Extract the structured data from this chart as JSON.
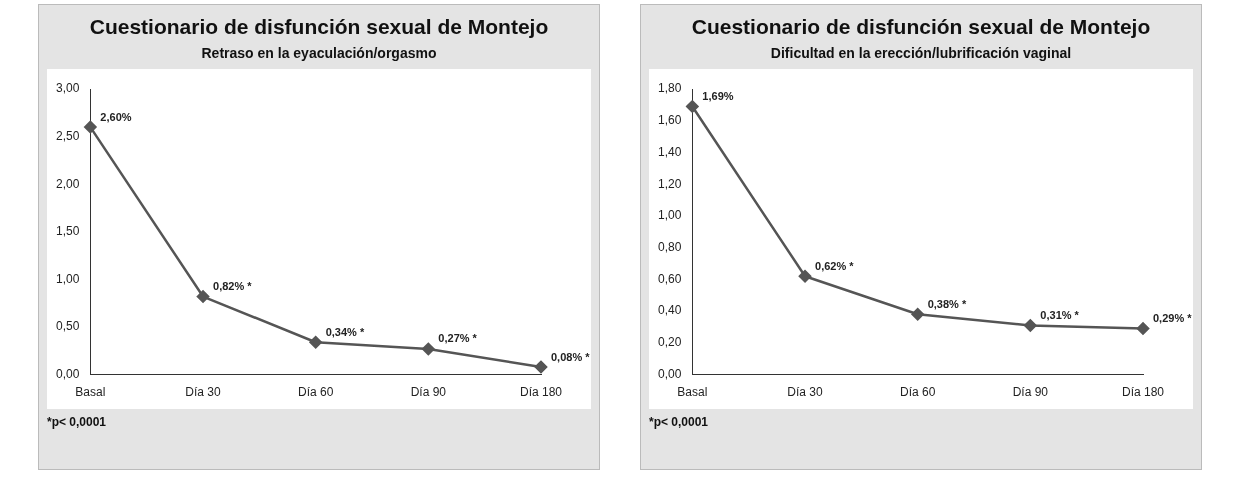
{
  "chart_data": [
    {
      "type": "line",
      "title": "Cuestionario de disfunción sexual de Montejo",
      "subtitle": "Retraso en la eyaculación/orgasmo",
      "categories": [
        "Basal",
        "Día 30",
        "Día 60",
        "Día 90",
        "Día 180"
      ],
      "values": [
        2.6,
        0.82,
        0.34,
        0.27,
        0.08
      ],
      "value_labels": [
        "2,60%",
        "0,82% *",
        "0,34% *",
        "0,27% *",
        "0,08% *"
      ],
      "color": "#555555",
      "marker": "diamond",
      "ylim": [
        0,
        3
      ],
      "yticks": [
        {
          "value": 0,
          "label": "0,00"
        },
        {
          "value": 0.5,
          "label": "0,50"
        },
        {
          "value": 1,
          "label": "1,00"
        },
        {
          "value": 1.5,
          "label": "1,50"
        },
        {
          "value": 2,
          "label": "2,00"
        },
        {
          "value": 2.5,
          "label": "2,50"
        },
        {
          "value": 3,
          "label": "3,00"
        }
      ],
      "annotations": [
        "*p< 0,0001"
      ]
    },
    {
      "type": "line",
      "title": "Cuestionario de disfunción sexual de Montejo",
      "subtitle": "Dificultad en la erección/lubrificación vaginal",
      "categories": [
        "Basal",
        "Día 30",
        "Día 60",
        "Día 90",
        "Día 180"
      ],
      "values": [
        1.69,
        0.62,
        0.38,
        0.31,
        0.29
      ],
      "value_labels": [
        "1,69%",
        "0,62% *",
        "0,38% *",
        "0,31% *",
        "0,29% *"
      ],
      "color": "#555555",
      "marker": "diamond",
      "ylim": [
        0,
        1.8
      ],
      "yticks": [
        {
          "value": 0,
          "label": "0,00"
        },
        {
          "value": 0.2,
          "label": "0,20"
        },
        {
          "value": 0.4,
          "label": "0,40"
        },
        {
          "value": 0.6,
          "label": "0,60"
        },
        {
          "value": 0.8,
          "label": "0,80"
        },
        {
          "value": 1,
          "label": "1,00"
        },
        {
          "value": 1.2,
          "label": "1,20"
        },
        {
          "value": 1.4,
          "label": "1,40"
        },
        {
          "value": 1.6,
          "label": "1,60"
        },
        {
          "value": 1.8,
          "label": "1,80"
        }
      ],
      "annotations": [
        "*p< 0,0001"
      ]
    }
  ]
}
